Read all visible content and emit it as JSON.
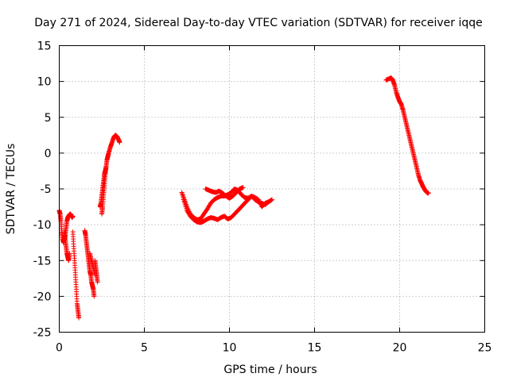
{
  "chart_data": {
    "type": "scatter",
    "title": "Day 271 of 2024, Sidereal Day-to-day VTEC variation (SDTVAR) for receiver iqqe",
    "xlabel": "GPS time / hours",
    "ylabel": "SDTVAR / TECUs",
    "xlim": [
      0,
      25
    ],
    "ylim": [
      -25,
      15
    ],
    "xticks": [
      0,
      5,
      10,
      15,
      20,
      25
    ],
    "yticks": [
      -25,
      -20,
      -15,
      -10,
      -5,
      0,
      5,
      10,
      15
    ],
    "xtick_labels": [
      "0",
      "5",
      "10",
      "15",
      "20",
      "25"
    ],
    "ytick_labels": [
      "-25",
      "-20",
      "-15",
      "-10",
      "-5",
      "0",
      "5",
      "10",
      "15"
    ],
    "grid": true,
    "marker": "+",
    "color": "#ff0000",
    "series": [
      {
        "name": "iqqe",
        "segments": [
          {
            "x": [
              0.0,
              0.05,
              0.1,
              0.15,
              0.2,
              0.25,
              0.3,
              0.35,
              0.4,
              0.45,
              0.5,
              0.55,
              0.6,
              0.65,
              0.7,
              0.75,
              0.8
            ],
            "y": [
              -8.0,
              -8.5,
              -9.5,
              -11.0,
              -12.0,
              -12.5,
              -12.0,
              -11.5,
              -10.5,
              -9.5,
              -9.0,
              -8.8,
              -8.6,
              -8.5,
              -8.7,
              -9.0,
              -8.8
            ]
          },
          {
            "x": [
              0.3,
              0.35,
              0.4,
              0.45,
              0.5,
              0.55,
              0.6
            ],
            "y": [
              -11.0,
              -12.0,
              -13.0,
              -14.0,
              -14.5,
              -15.0,
              -14.0
            ]
          },
          {
            "x": [
              0.8,
              0.85,
              0.9,
              0.95,
              1.0,
              1.05,
              1.1,
              1.15
            ],
            "y": [
              -11.0,
              -13.0,
              -15.0,
              -17.0,
              -19.0,
              -21.0,
              -22.0,
              -23.0
            ]
          },
          {
            "x": [
              1.5,
              1.55,
              1.6,
              1.65,
              1.7,
              1.75,
              1.8,
              1.85,
              1.9,
              1.95,
              2.0,
              2.05
            ],
            "y": [
              -10.8,
              -11.5,
              -12.5,
              -13.5,
              -14.5,
              -15.5,
              -16.5,
              -17.0,
              -18.0,
              -18.5,
              -19.0,
              -20.0
            ]
          },
          {
            "x": [
              1.8,
              1.9,
              2.0,
              2.1
            ],
            "y": [
              -14.0,
              -15.0,
              -16.0,
              -17.0
            ]
          },
          {
            "x": [
              2.1,
              2.15,
              2.2,
              2.25
            ],
            "y": [
              -15.0,
              -16.0,
              -17.0,
              -18.0
            ]
          },
          {
            "x": [
              2.4,
              2.45,
              2.5,
              2.55,
              2.6,
              2.65,
              2.7,
              2.75
            ],
            "y": [
              -7.5,
              -7.0,
              -6.0,
              -5.0,
              -4.0,
              -3.0,
              -2.5,
              -2.0
            ]
          },
          {
            "x": [
              2.5,
              2.55,
              2.6,
              2.65,
              2.7,
              2.75,
              2.8,
              2.85,
              2.9,
              3.0,
              3.1,
              3.2,
              3.3,
              3.4,
              3.5,
              3.55
            ],
            "y": [
              -8.5,
              -7.5,
              -6.0,
              -4.5,
              -3.0,
              -2.0,
              -1.0,
              -0.5,
              0.0,
              0.8,
              1.5,
              2.2,
              2.5,
              2.3,
              1.8,
              1.5
            ]
          },
          {
            "x": [
              7.2,
              7.35,
              7.5,
              7.7,
              7.9,
              8.1,
              8.3,
              8.5,
              8.7,
              8.9,
              9.1,
              9.3,
              9.5,
              9.7,
              9.9,
              10.1,
              10.3,
              10.5,
              10.7,
              10.9,
              11.1,
              11.3,
              11.5,
              11.7,
              11.9,
              12.1,
              12.3,
              12.5
            ],
            "y": [
              -5.5,
              -6.5,
              -7.5,
              -8.5,
              -9.0,
              -9.3,
              -9.2,
              -8.5,
              -7.8,
              -7.0,
              -6.5,
              -6.2,
              -6.0,
              -6.0,
              -5.8,
              -5.5,
              -5.0,
              -5.2,
              -5.8,
              -6.2,
              -6.3,
              -6.0,
              -6.5,
              -6.8,
              -7.0,
              -7.2,
              -6.8,
              -6.5
            ]
          },
          {
            "x": [
              7.3,
              7.5,
              7.7,
              7.9,
              8.1,
              8.3,
              8.5,
              8.7,
              8.9,
              9.1,
              9.3,
              9.5,
              9.7,
              9.9,
              10.1,
              10.3,
              10.5,
              10.7,
              10.9,
              11.1,
              11.3,
              11.5,
              11.7,
              11.9,
              12.1,
              12.3
            ],
            "y": [
              -6.5,
              -8.0,
              -8.8,
              -9.3,
              -9.6,
              -9.7,
              -9.5,
              -9.2,
              -9.0,
              -9.1,
              -9.3,
              -9.0,
              -8.8,
              -9.2,
              -9.0,
              -8.5,
              -8.0,
              -7.5,
              -7.0,
              -6.5,
              -6.0,
              -6.2,
              -6.5,
              -7.5,
              -7.0,
              -6.8
            ]
          },
          {
            "x": [
              8.6,
              8.8,
              9.0,
              9.2,
              9.4,
              9.6,
              9.8,
              10.0,
              10.2,
              10.4,
              10.6,
              10.8
            ],
            "y": [
              -5.0,
              -5.2,
              -5.4,
              -5.5,
              -5.3,
              -5.6,
              -6.0,
              -6.3,
              -6.0,
              -5.5,
              -5.0,
              -4.8
            ]
          },
          {
            "x": [
              19.2,
              19.4,
              19.5,
              19.6,
              19.7,
              19.8,
              19.9,
              20.0,
              20.1,
              20.2,
              20.3,
              20.4,
              20.5,
              20.6,
              20.7,
              20.8,
              20.9,
              21.0,
              21.1,
              21.2,
              21.3,
              21.4,
              21.5,
              21.6,
              21.7
            ],
            "y": [
              10.2,
              10.4,
              10.5,
              10.2,
              9.5,
              8.5,
              7.8,
              7.2,
              6.8,
              6.0,
              5.0,
              4.0,
              3.0,
              2.0,
              1.0,
              0.0,
              -1.0,
              -2.0,
              -3.0,
              -3.8,
              -4.3,
              -4.8,
              -5.2,
              -5.5,
              -5.6
            ]
          }
        ]
      }
    ]
  }
}
